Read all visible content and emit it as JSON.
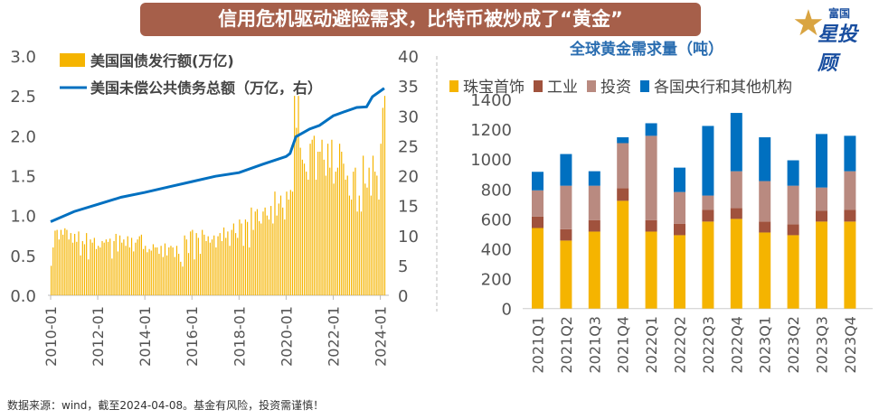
{
  "title": "信用危机驱动避险需求，比特币被炒成了“黄金”",
  "logo": {
    "line1": "富国",
    "line2": "星投顾"
  },
  "source": "数据来源：wind，截至2024-04-08。基金有风险，投资需谨慎！",
  "colors": {
    "gold": "#f5b400",
    "blue": "#0070c0",
    "industry": "#a0523d",
    "investment": "#b98a80",
    "banner": "#a65f4a"
  },
  "chart_data": [
    {
      "type": "bar+line",
      "legend": [
        "美国国债发行额(万亿)",
        "美国未偿公共债务总额（万亿，右）"
      ],
      "legend_placement": "top-left",
      "ylim_left": [
        0,
        3.0
      ],
      "yticks_left": [
        "0.0",
        "0.5",
        "1.0",
        "1.5",
        "2.0",
        "2.5",
        "3.0"
      ],
      "ylim_right": [
        0,
        40
      ],
      "yticks_right": [
        "0",
        "5",
        "10",
        "15",
        "20",
        "25",
        "30",
        "35",
        "40"
      ],
      "xticks": [
        "2010-01",
        "2012-01",
        "2014-01",
        "2016-01",
        "2018-01",
        "2020-01",
        "2022-01",
        "2024-01"
      ],
      "bar_series": {
        "name": "美国国债发行额(万亿)",
        "start": "2010-01",
        "frequency": "monthly",
        "values": [
          0.37,
          0.6,
          0.81,
          0.82,
          0.7,
          0.82,
          0.76,
          0.84,
          0.82,
          0.7,
          0.78,
          0.66,
          0.77,
          0.67,
          0.8,
          0.5,
          0.68,
          0.64,
          0.78,
          0.45,
          0.7,
          0.66,
          0.72,
          0.58,
          0.62,
          0.6,
          0.68,
          0.66,
          0.7,
          0.67,
          0.71,
          0.46,
          0.68,
          0.77,
          0.55,
          0.75,
          0.66,
          0.7,
          0.62,
          0.74,
          0.6,
          0.72,
          0.55,
          0.66,
          0.7,
          0.74,
          0.76,
          0.58,
          0.62,
          0.54,
          0.58,
          0.56,
          0.64,
          0.6,
          0.6,
          0.52,
          0.62,
          0.48,
          0.65,
          0.5,
          0.6,
          0.62,
          0.6,
          0.48,
          0.62,
          0.52,
          0.42,
          0.36,
          0.75,
          0.7,
          0.53,
          0.8,
          0.82,
          0.45,
          0.78,
          0.72,
          0.52,
          0.82,
          0.76,
          0.68,
          0.74,
          0.66,
          0.7,
          0.75,
          0.6,
          0.74,
          0.78,
          0.68,
          0.85,
          0.72,
          0.8,
          0.62,
          0.82,
          0.9,
          0.78,
          0.72,
          0.95,
          0.9,
          0.62,
          0.95,
          0.92,
          0.6,
          1.1,
          0.82,
          1.05,
          1.08,
          0.93,
          0.9,
          1.05,
          1.1,
          1.0,
          0.95,
          1.12,
          0.9,
          1.3,
          1.0,
          1.15,
          1.25,
          1.1,
          0.95,
          1.3,
          1.2,
          1.32,
          1.3,
          2.5,
          2.1,
          2.5,
          1.85,
          1.7,
          1.65,
          1.55,
          1.45,
          1.9,
          1.95,
          2.0,
          1.45,
          1.8,
          1.8,
          1.95,
          1.7,
          1.5,
          1.9,
          1.6,
          1.95,
          1.4,
          1.55,
          1.6,
          1.9,
          1.8,
          1.65,
          1.45,
          1.5,
          1.25,
          1.2,
          1.55,
          1.6,
          1.05,
          1.25,
          1.05,
          1.75,
          1.4,
          1.35,
          1.6,
          1.25,
          1.75,
          1.55,
          1.5,
          1.2,
          1.9,
          2.35,
          2.5
        ]
      },
      "line_series": {
        "name": "美国未偿公共债务总额（万亿，右）",
        "axis": "right",
        "points": [
          [
            "2010-01",
            12.3
          ],
          [
            "2011-01",
            14.0
          ],
          [
            "2012-01",
            15.2
          ],
          [
            "2013-01",
            16.4
          ],
          [
            "2014-01",
            17.2
          ],
          [
            "2015-01",
            18.1
          ],
          [
            "2016-01",
            19.0
          ],
          [
            "2017-01",
            19.9
          ],
          [
            "2018-01",
            20.5
          ],
          [
            "2019-01",
            21.9
          ],
          [
            "2020-01",
            23.2
          ],
          [
            "2020-03",
            23.7
          ],
          [
            "2020-06",
            26.5
          ],
          [
            "2021-01",
            27.8
          ],
          [
            "2021-06",
            28.4
          ],
          [
            "2022-01",
            30.0
          ],
          [
            "2022-06",
            30.6
          ],
          [
            "2023-01",
            31.4
          ],
          [
            "2023-06",
            31.5
          ],
          [
            "2023-09",
            33.2
          ],
          [
            "2024-03",
            34.6
          ]
        ]
      }
    },
    {
      "type": "stacked-bar",
      "title": "全球黄金需求量（吨）",
      "legend_placement": "top",
      "ylim": [
        0,
        1400
      ],
      "yticks": [
        "0",
        "200",
        "400",
        "600",
        "800",
        "1000",
        "1200",
        "1400"
      ],
      "categories": [
        "2021Q1",
        "2021Q2",
        "2021Q3",
        "2021Q4",
        "2022Q1",
        "2022Q2",
        "2022Q3",
        "2022Q4",
        "2023Q1",
        "2023Q2",
        "2023Q3",
        "2023Q4"
      ],
      "series": [
        {
          "name": "珠宝首饰",
          "values": [
            539,
            455,
            515,
            721,
            515,
            491,
            582,
            600,
            509,
            491,
            582,
            582
          ]
        },
        {
          "name": "工业",
          "values": [
            77,
            76,
            77,
            85,
            77,
            77,
            78,
            73,
            73,
            73,
            72,
            78
          ]
        },
        {
          "name": "投资",
          "values": [
            175,
            291,
            230,
            301,
            564,
            212,
            96,
            246,
            271,
            258,
            156,
            259
          ]
        },
        {
          "name": "各国央行和其他机构",
          "values": [
            124,
            212,
            97,
            39,
            84,
            163,
            466,
            390,
            293,
            170,
            358,
            237
          ]
        }
      ]
    }
  ]
}
